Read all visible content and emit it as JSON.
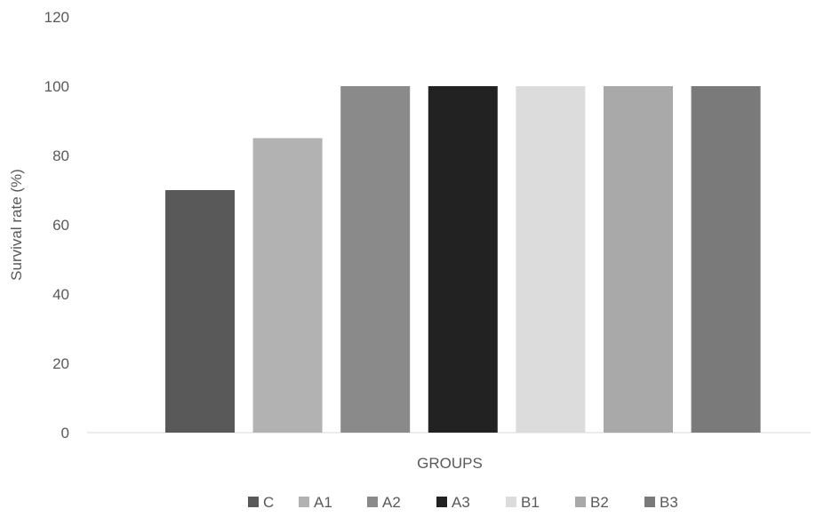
{
  "chart_data": {
    "type": "bar",
    "title": "",
    "xlabel": "GROUPS",
    "ylabel": "Survival rate (%)",
    "ylim": [
      0,
      120
    ],
    "yticks": [
      0,
      20,
      40,
      60,
      80,
      100,
      120
    ],
    "grid": false,
    "legend_position": "bottom",
    "series": [
      {
        "name": "C",
        "value": 70,
        "color": "#595959"
      },
      {
        "name": "A1",
        "value": 85,
        "color": "#b2b2b2"
      },
      {
        "name": "A2",
        "value": 100,
        "color": "#8a8a8a"
      },
      {
        "name": "A3",
        "value": 100,
        "color": "#222222"
      },
      {
        "name": "B1",
        "value": 100,
        "color": "#dcdcdc"
      },
      {
        "name": "B2",
        "value": 100,
        "color": "#a9a9a9"
      },
      {
        "name": "B3",
        "value": 100,
        "color": "#7a7a7a"
      }
    ]
  }
}
